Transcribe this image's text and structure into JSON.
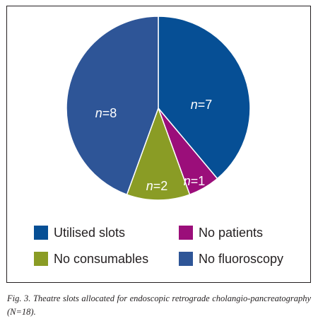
{
  "chart_data": {
    "type": "pie",
    "slices": [
      {
        "label": "Utilised slots",
        "value": 7,
        "color": "#064f95",
        "text_prefix": "n",
        "text_value": "=7"
      },
      {
        "label": "No patients",
        "value": 1,
        "color": "#9b0e7a",
        "text_prefix": "n",
        "text_value": "=1"
      },
      {
        "label": "No consumables",
        "value": 2,
        "color": "#8a9c25",
        "text_prefix": "n",
        "text_value": "=2"
      },
      {
        "label": "No fluoroscopy",
        "value": 8,
        "color": "#2e5597",
        "text_prefix": "n",
        "text_value": "=8"
      }
    ],
    "legend": [
      "Utilised slots",
      "No patients",
      "No consumables",
      "No fluoroscopy"
    ],
    "legend_position": "bottom"
  },
  "caption": "Fig. 3. Theatre slots allocated for endoscopic retrograde cholangio-pancreatography (N=18)."
}
